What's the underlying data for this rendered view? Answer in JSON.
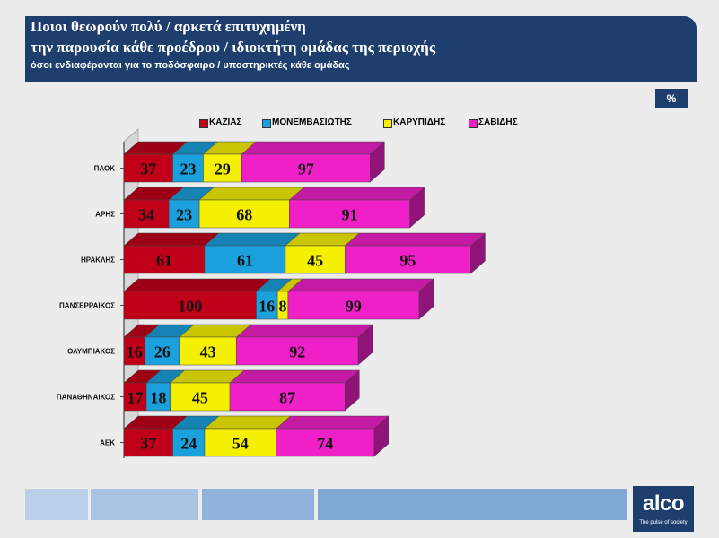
{
  "header": {
    "title_line1": "Ποιοι θεωρούν πολύ / αρκετά επιτυχημένη",
    "title_line2": "την παρουσία κάθε προέδρου / ιδιοκτήτη ομάδας της περιοχής",
    "subtitle": "όσοι ενδιαφέρονται για το ποδόσφαιρο  / υποστηρικτές κάθε ομάδας"
  },
  "unit_badge": "%",
  "logo": {
    "word": "alco",
    "tagline": "The pulse of society"
  },
  "colors": {
    "header_bg": "#1e3f6e",
    "footer_boxes": [
      "#b9cfe8",
      "#a9c4e3",
      "#8fb2db",
      "#7fa8d6"
    ]
  },
  "chart_data": {
    "type": "bar",
    "orientation": "horizontal",
    "stacked": true,
    "style": "3d",
    "categories": [
      "ΠΑΟΚ",
      "ΑΡΗΣ",
      "ΗΡΑΚΛΗΣ",
      "ΠΑΝΣΕΡΡΑΙΚΟΣ",
      "ΟΛΥΜΠΙΑΚΟΣ",
      "ΠΑΝΑΘΗΝΑΙΚΟΣ",
      "ΑΕΚ"
    ],
    "series": [
      {
        "name": "ΚΑΖΙΑΣ",
        "color": "#c00018",
        "values": [
          37,
          34,
          61,
          100,
          16,
          17,
          37
        ]
      },
      {
        "name": "ΜΟΝΕΜΒΑΣΙΩΤΗΣ",
        "color": "#1aa0dc",
        "values": [
          23,
          23,
          61,
          16,
          26,
          18,
          24
        ]
      },
      {
        "name": "ΚΑΡΥΠΙΔΗΣ",
        "color": "#f5f000",
        "values": [
          29,
          68,
          45,
          8,
          43,
          45,
          54
        ]
      },
      {
        "name": "ΣΑΒΙΔΗΣ",
        "color": "#f020c8",
        "values": [
          97,
          91,
          95,
          99,
          92,
          87,
          74
        ]
      }
    ],
    "legend_position": "top",
    "grid": false
  }
}
